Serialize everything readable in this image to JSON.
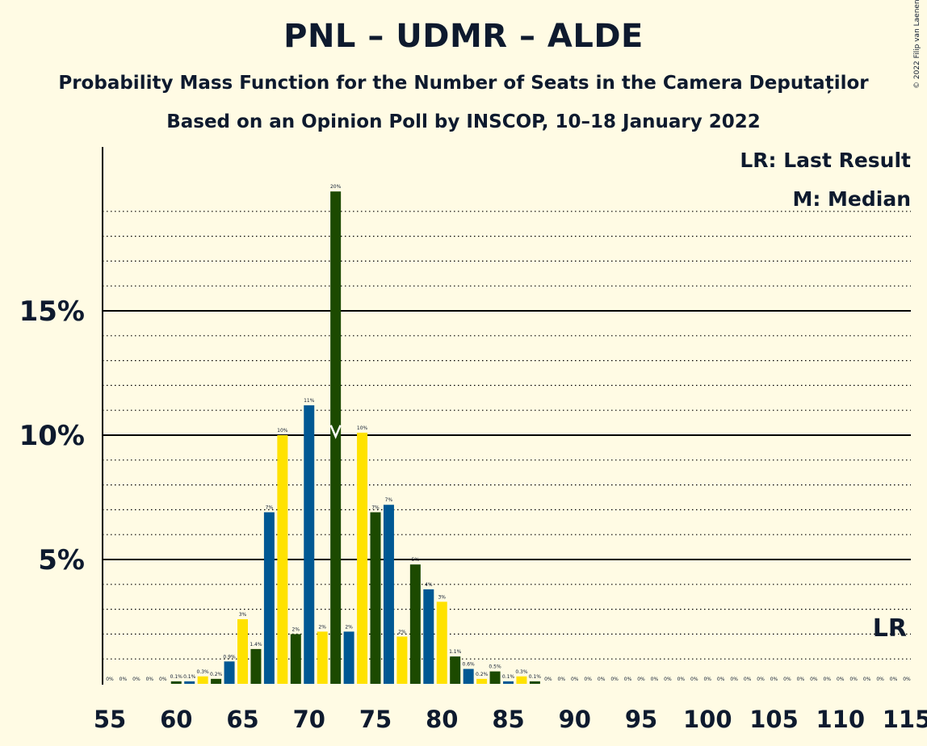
{
  "title": "PNL – UDMR – ALDE",
  "subtitle": "Probability Mass Function for the Number of Seats in the Camera Deputaților",
  "subtitle2": "Based on an Opinion Poll by INSCOP, 10–18 January 2022",
  "copyright": "© 2022 Filip van Laenen",
  "legend": {
    "last_result": "LR: Last Result",
    "median": "M: Median"
  },
  "markers": {
    "last_result_label": "LR",
    "last_result_seat": 115,
    "median_seat": 72
  },
  "colors": {
    "blue": "#005893",
    "yellow": "#FFE200",
    "green": "#1C4A00",
    "background": "#FFFBE4",
    "text": "#0E1A2E"
  },
  "chart_data": {
    "type": "bar",
    "xlabel": "",
    "ylabel": "",
    "xlim": [
      55,
      115
    ],
    "ylim": [
      0,
      21
    ],
    "x_ticks": [
      55,
      60,
      65,
      70,
      75,
      80,
      85,
      90,
      95,
      100,
      105,
      110,
      115
    ],
    "y_ticks": [
      {
        "value": 5,
        "label": "5%"
      },
      {
        "value": 10,
        "label": "10%"
      },
      {
        "value": 15,
        "label": "15%"
      }
    ],
    "grid": "dotted every 1%, solid at 5%",
    "color_cycle": [
      "blue",
      "yellow",
      "green"
    ],
    "x": [
      55,
      56,
      57,
      58,
      59,
      60,
      61,
      62,
      63,
      64,
      65,
      66,
      67,
      68,
      69,
      70,
      71,
      72,
      73,
      74,
      75,
      76,
      77,
      78,
      79,
      80,
      81,
      82,
      83,
      84,
      85,
      86,
      87,
      88,
      89,
      90,
      91,
      92,
      93,
      94,
      95,
      96,
      97,
      98,
      99,
      100,
      101,
      102,
      103,
      104,
      105,
      106,
      107,
      108,
      109,
      110,
      111,
      112,
      113,
      114,
      115
    ],
    "values": [
      0,
      0,
      0,
      0,
      0,
      0.1,
      0.1,
      0.3,
      0.2,
      0.9,
      2.6,
      1.4,
      6.9,
      10.0,
      2.0,
      11.2,
      2.1,
      19.8,
      2.1,
      10.1,
      6.9,
      7.2,
      1.9,
      4.8,
      3.8,
      3.3,
      1.1,
      0.6,
      0.2,
      0.5,
      0.1,
      0.3,
      0.1,
      0,
      0,
      0,
      0,
      0,
      0,
      0,
      0,
      0,
      0,
      0,
      0,
      0,
      0,
      0,
      0,
      0,
      0,
      0,
      0,
      0,
      0,
      0,
      0,
      0,
      0,
      0,
      0
    ],
    "labels": [
      "0%",
      "0%",
      "0%",
      "0%",
      "0%",
      "0.1%",
      "0.1%",
      "0.3%",
      "0.2%",
      "0.9%",
      "3%",
      "1.4%",
      "7%",
      "10%",
      "2%",
      "11%",
      "2%",
      "20%",
      "2%",
      "10%",
      "7%",
      "7%",
      "2%",
      "5%",
      "4%",
      "3%",
      "1.1%",
      "0.6%",
      "0.2%",
      "0.5%",
      "0.1%",
      "0.3%",
      "0.1%",
      "0%",
      "0%",
      "0%",
      "0%",
      "0%",
      "0%",
      "0%",
      "0%",
      "0%",
      "0%",
      "0%",
      "0%",
      "0%",
      "0%",
      "0%",
      "0%",
      "0%",
      "0%",
      "0%",
      "0%",
      "0%",
      "0%",
      "0%",
      "0%",
      "0%",
      "0%",
      "0%",
      "0%"
    ]
  }
}
